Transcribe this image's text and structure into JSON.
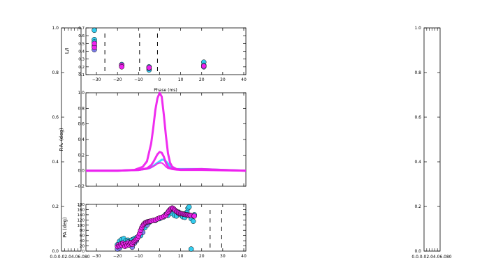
{
  "chart_data": [
    {
      "type": "line",
      "role": "side-axes-left",
      "yticks": [
        "0.0",
        "0.2",
        "0.4",
        "0.6",
        "0.8",
        "1.0"
      ],
      "xtick_text": "0.0.0.02.04.06.080",
      "ylim": [
        0,
        1
      ]
    },
    {
      "type": "scatter",
      "role": "top",
      "ylabel": "L/I",
      "xlabel": "Phase (ms)",
      "xlim": [
        -35,
        41
      ],
      "ylim": [
        0.1,
        0.7
      ],
      "xticks": [
        -30,
        -20,
        -10,
        0,
        10,
        20,
        30,
        40
      ],
      "yticks": [
        "0.1",
        "0.2",
        "0.3",
        "0.4",
        "0.5",
        "0.6",
        "0.7"
      ],
      "vlines": [
        -26,
        -9.5,
        -1
      ],
      "series": [
        {
          "color": "#33ccee",
          "points": [
            [
              -31,
              0.67
            ],
            [
              -31,
              0.55
            ],
            [
              -31,
              0.52
            ],
            [
              -18,
              0.23
            ],
            [
              -5,
              0.16
            ],
            [
              -5,
              0.2
            ],
            [
              21,
              0.26
            ],
            [
              21,
              0.22
            ]
          ]
        },
        {
          "color": "#7f7fef",
          "points": [
            [
              -31,
              0.42
            ],
            [
              -31,
              0.47
            ],
            [
              -18,
              0.21
            ],
            [
              -5,
              0.18
            ],
            [
              21,
              0.2
            ]
          ]
        },
        {
          "color": "#ee22ee",
          "points": [
            [
              -31,
              0.45
            ],
            [
              -31,
              0.5
            ],
            [
              -18,
              0.22
            ],
            [
              -18,
              0.2
            ],
            [
              -5,
              0.19
            ],
            [
              21,
              0.21
            ]
          ]
        }
      ]
    },
    {
      "type": "line",
      "role": "middle",
      "ylabel": "P.A. (deg)",
      "xlim": [
        -35,
        41
      ],
      "ylim": [
        -0.2,
        1.0
      ],
      "yticks": [
        "−0.2",
        "0.0",
        "0.2",
        "0.4",
        "0.6",
        "0.8",
        "1.0"
      ],
      "series": [
        {
          "color": "#33ddff",
          "width": 3,
          "x": [
            -35,
            -20,
            -10,
            -5,
            -3,
            -1,
            0,
            1,
            2,
            3,
            4,
            5,
            6,
            8,
            10,
            15,
            20,
            30,
            41
          ],
          "y": [
            0,
            0,
            0.01,
            0.03,
            0.06,
            0.1,
            0.12,
            0.14,
            0.14,
            0.12,
            0.09,
            0.06,
            0.04,
            0.02,
            0.02,
            0.02,
            0.02,
            0.01,
            0
          ]
        },
        {
          "color": "#ee22ee",
          "width": 3,
          "x": [
            -35,
            -20,
            -12,
            -8,
            -6,
            -4,
            -3,
            -2,
            -1,
            0,
            1,
            2,
            3,
            4,
            5,
            6,
            8,
            10,
            20,
            30,
            41
          ],
          "y": [
            0,
            0,
            0.01,
            0.05,
            0.12,
            0.35,
            0.55,
            0.78,
            0.93,
            1.0,
            0.95,
            0.72,
            0.45,
            0.22,
            0.1,
            0.05,
            0.02,
            0.015,
            0.02,
            0.01,
            0
          ]
        },
        {
          "color": "#ee22ee",
          "width": 3,
          "x": [
            -35,
            -20,
            -10,
            -6,
            -4,
            -3,
            -2,
            -1,
            0,
            1,
            2,
            3,
            4,
            5,
            6,
            8,
            10,
            20,
            41
          ],
          "y": [
            0,
            0,
            0.01,
            0.03,
            0.07,
            0.11,
            0.16,
            0.21,
            0.24,
            0.23,
            0.18,
            0.1,
            0.05,
            0.03,
            0.02,
            0.015,
            0.01,
            0.01,
            0
          ]
        },
        {
          "color": "#ee22ee",
          "width": 2,
          "x": [
            -35,
            -20,
            -10,
            -6,
            -4,
            -2,
            -1,
            0,
            1,
            2,
            3,
            4,
            6,
            8,
            10,
            20,
            41
          ],
          "y": [
            0,
            0,
            0.005,
            0.02,
            0.04,
            0.07,
            0.09,
            0.1,
            0.1,
            0.08,
            0.05,
            0.03,
            0.02,
            0.01,
            0.01,
            0.01,
            0
          ]
        }
      ]
    },
    {
      "type": "scatter",
      "role": "bottom",
      "ylabel": "PA (deg)",
      "xlim": [
        -35,
        41
      ],
      "ylim": [
        0,
        180
      ],
      "xticks": [
        -30,
        -20,
        -10,
        0,
        10,
        20,
        30,
        40
      ],
      "yticks": [
        "0",
        "20",
        "40",
        "60",
        "80",
        "100",
        "120",
        "140",
        "160",
        "180"
      ],
      "vlines": [
        24,
        29.5
      ],
      "series": [
        {
          "color": "#33ccee",
          "points": [
            [
              -20,
              25
            ],
            [
              -19,
              38
            ],
            [
              -18,
              45
            ],
            [
              -17,
              48
            ],
            [
              -16,
              40
            ],
            [
              -15,
              42
            ],
            [
              -14,
              38
            ],
            [
              -13,
              44
            ],
            [
              -12,
              48
            ],
            [
              -11,
              52
            ],
            [
              -9,
              60
            ],
            [
              -7,
              90
            ],
            [
              -5,
              110
            ],
            [
              -3,
              118
            ],
            [
              0,
              125
            ],
            [
              2,
              132
            ],
            [
              4,
              138
            ],
            [
              6,
              145
            ],
            [
              7,
              138
            ],
            [
              8,
              135
            ],
            [
              9,
              150
            ],
            [
              10,
              140
            ],
            [
              11,
              132
            ],
            [
              12,
              130
            ],
            [
              13,
              150
            ],
            [
              13.5,
              165
            ],
            [
              14,
              170
            ],
            [
              15,
              125
            ],
            [
              16,
              115
            ],
            [
              16.5,
              140
            ],
            [
              15,
              8
            ]
          ]
        },
        {
          "color": "#7f7fef",
          "points": [
            [
              -20,
              8
            ],
            [
              -19,
              12
            ],
            [
              -18,
              30
            ],
            [
              -17,
              22
            ],
            [
              -16,
              28
            ],
            [
              -15,
              35
            ],
            [
              -14,
              32
            ],
            [
              -13,
              15
            ],
            [
              -12,
              30
            ],
            [
              -11,
              40
            ],
            [
              -8,
              72
            ],
            [
              -6,
              100
            ],
            [
              -2,
              118
            ],
            [
              1,
              130
            ],
            [
              3,
              142
            ],
            [
              5,
              155
            ],
            [
              9,
              145
            ],
            [
              12,
              142
            ]
          ]
        },
        {
          "color": "#ee22ee",
          "points": [
            [
              -20,
              18
            ],
            [
              -19.5,
              24
            ],
            [
              -19,
              20
            ],
            [
              -18.5,
              27
            ],
            [
              -18,
              22
            ],
            [
              -17.5,
              30
            ],
            [
              -17,
              25
            ],
            [
              -16.5,
              18
            ],
            [
              -16,
              28
            ],
            [
              -15.5,
              22
            ],
            [
              -15,
              30
            ],
            [
              -14.5,
              24
            ],
            [
              -14,
              28
            ],
            [
              -13.5,
              32
            ],
            [
              -13,
              26
            ],
            [
              -12.5,
              34
            ],
            [
              -12,
              38
            ],
            [
              -11.5,
              42
            ],
            [
              -11,
              46
            ],
            [
              -10.5,
              50
            ],
            [
              -10,
              58
            ],
            [
              -9.5,
              68
            ],
            [
              -9,
              80
            ],
            [
              -8.5,
              90
            ],
            [
              -8,
              98
            ],
            [
              -7.5,
              104
            ],
            [
              -7,
              108
            ],
            [
              -6.5,
              110
            ],
            [
              -6,
              112
            ],
            [
              -5.5,
              113
            ],
            [
              -5,
              114
            ],
            [
              -4.5,
              115
            ],
            [
              -4,
              116
            ],
            [
              -3,
              118
            ],
            [
              -2,
              120
            ],
            [
              -1,
              124
            ],
            [
              0,
              128
            ],
            [
              1,
              130
            ],
            [
              2,
              134
            ],
            [
              3,
              138
            ],
            [
              3.5,
              144
            ],
            [
              4,
              150
            ],
            [
              4.5,
              156
            ],
            [
              5,
              160
            ],
            [
              5.5,
              164
            ],
            [
              6,
              166
            ],
            [
              6.5,
              164
            ],
            [
              7,
              160
            ],
            [
              7.5,
              156
            ],
            [
              8,
              152
            ],
            [
              8.5,
              150
            ],
            [
              9,
              148
            ],
            [
              9.5,
              146
            ],
            [
              10,
              145
            ],
            [
              10.5,
              144
            ],
            [
              11,
              143
            ],
            [
              11.5,
              142
            ],
            [
              12,
              141
            ],
            [
              12.5,
              140
            ],
            [
              13,
              140
            ],
            [
              13.5,
              139
            ],
            [
              14,
              138
            ],
            [
              14.5,
              138
            ],
            [
              15,
              137
            ],
            [
              16,
              136
            ],
            [
              16.5,
              135
            ]
          ]
        }
      ]
    },
    {
      "type": "line",
      "role": "side-axes-right",
      "yticks": [
        "0.0",
        "0.2",
        "0.4",
        "0.6",
        "0.8",
        "1.0"
      ],
      "xtick_text": "0.0.0.02.04.06.080",
      "ylim": [
        0,
        1
      ]
    }
  ]
}
